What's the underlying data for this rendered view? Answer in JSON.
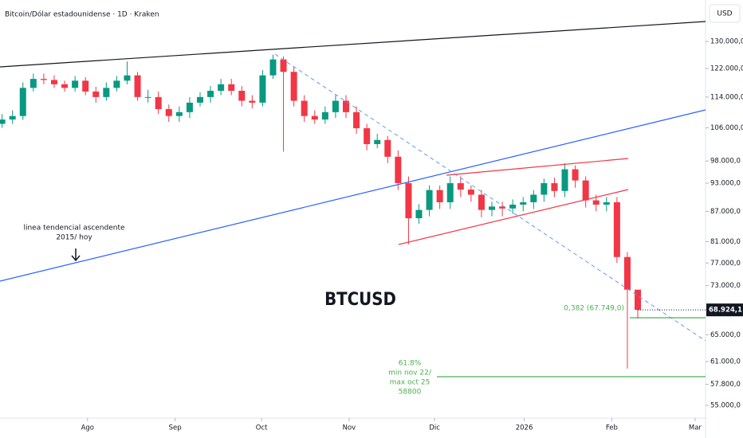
{
  "header": {
    "title": "Bitcoin/Dólar estadounidense · 1D · Kraken",
    "currency": "USD"
  },
  "chart_data": {
    "type": "candlestick",
    "symbol": "BTCUSD",
    "log_scale": true,
    "up_color": "#089981",
    "down_color": "#f23645",
    "categories": [
      null,
      null,
      null,
      null,
      null,
      null,
      null,
      null,
      null,
      null,
      null,
      null,
      null,
      null,
      null,
      null,
      null,
      null,
      null,
      null,
      null,
      null,
      null,
      null,
      null,
      null,
      null,
      null,
      null,
      null,
      null,
      null,
      null,
      null,
      null,
      null,
      null,
      null,
      null,
      null,
      null,
      null,
      null,
      null,
      null,
      null,
      null,
      null,
      null,
      null,
      null,
      null,
      null,
      null,
      null,
      null,
      null,
      null,
      null,
      null,
      null,
      null
    ],
    "open": [
      107000,
      108100,
      109000,
      116500,
      119000,
      118700,
      117500,
      116500,
      118500,
      115500,
      114000,
      116500,
      118500,
      120000,
      114000,
      114000,
      110800,
      109000,
      110000,
      112500,
      114000,
      115700,
      117500,
      115700,
      113000,
      112500,
      120000,
      124600,
      121000,
      113000,
      109000,
      108100,
      110000,
      113000,
      110000,
      105900,
      102000,
      103000,
      99000,
      93000,
      85600,
      87300,
      91500,
      88900,
      93000,
      91600,
      90500,
      87300,
      88000,
      87600,
      88400,
      88900,
      90500,
      93000,
      91300,
      96100,
      93600,
      89300,
      88400,
      88900,
      78100,
      72300
    ],
    "high": [
      109500,
      110500,
      118000,
      120500,
      120500,
      120000,
      118500,
      119800,
      119500,
      116800,
      118000,
      119800,
      124000,
      121000,
      116000,
      115500,
      112000,
      111500,
      114000,
      115300,
      117000,
      119000,
      119000,
      117000,
      114500,
      121500,
      126000,
      125500,
      122500,
      114500,
      110500,
      111500,
      114500,
      114500,
      111500,
      107000,
      104500,
      104000,
      100500,
      94500,
      88500,
      92500,
      92500,
      94500,
      94500,
      92500,
      91500,
      89000,
      89000,
      89500,
      90000,
      91500,
      94000,
      94200,
      97500,
      97000,
      94500,
      90500,
      90000,
      90000,
      79000,
      71500
    ],
    "low": [
      106000,
      107000,
      108000,
      115500,
      117500,
      116500,
      115500,
      115500,
      114500,
      112500,
      113000,
      115500,
      117500,
      113000,
      112500,
      109500,
      107500,
      107500,
      108500,
      111500,
      112500,
      114500,
      114500,
      111500,
      111000,
      111500,
      119000,
      100200,
      111500,
      107500,
      107000,
      107000,
      108500,
      108500,
      104500,
      100500,
      101000,
      97500,
      91500,
      80500,
      84500,
      86000,
      87500,
      87500,
      90000,
      89000,
      85800,
      86000,
      86000,
      86500,
      87000,
      87500,
      89000,
      90000,
      90000,
      92000,
      87800,
      87000,
      87000,
      77000,
      60000,
      67500
    ],
    "close": [
      108100,
      109000,
      116500,
      119000,
      118700,
      117500,
      116500,
      118500,
      115500,
      114000,
      116500,
      118500,
      120000,
      114000,
      114000,
      110800,
      109000,
      110000,
      112500,
      114000,
      115700,
      117500,
      115700,
      113000,
      112500,
      120000,
      124600,
      121000,
      113000,
      109000,
      108100,
      110000,
      113000,
      110000,
      105900,
      102000,
      103000,
      99000,
      93000,
      85600,
      87300,
      91500,
      88900,
      93000,
      91600,
      90500,
      87300,
      88000,
      87600,
      88400,
      88900,
      90500,
      93000,
      91300,
      96100,
      93600,
      89300,
      88400,
      88900,
      78100,
      72300,
      68924.1
    ],
    "xlim": [
      -0.2,
      67.5
    ],
    "xticks": [
      {
        "value": 8.2,
        "label": "Ago"
      },
      {
        "value": 16.6,
        "label": "Sep"
      },
      {
        "value": 24.9,
        "label": "Oct"
      },
      {
        "value": 33.3,
        "label": "Nov"
      },
      {
        "value": 41.5,
        "label": "Dic"
      },
      {
        "value": 50.1,
        "label": "2026"
      },
      {
        "value": 58.5,
        "label": "Feb"
      },
      {
        "value": 66.5,
        "label": "Mar"
      }
    ],
    "ylim": [
      53370,
      143400
    ],
    "yticks": [
      {
        "value": 55000,
        "label": "55.000,0"
      },
      {
        "value": 57800,
        "label": "57.800,0"
      },
      {
        "value": 61000,
        "label": "61.000,0"
      },
      {
        "value": 65000,
        "label": "65.000,0"
      },
      {
        "value": 73000,
        "label": "73.000,0"
      },
      {
        "value": 77000,
        "label": "77.000,0"
      },
      {
        "value": 81000,
        "label": "81.000,0"
      },
      {
        "value": 87000,
        "label": "87.000,0"
      },
      {
        "value": 93000,
        "label": "93.000,0"
      },
      {
        "value": 98000,
        "label": "98.000,0"
      },
      {
        "value": 106000,
        "label": "106.000,0"
      },
      {
        "value": 114000,
        "label": "114.000,0"
      },
      {
        "value": 122000,
        "label": "122.000,0"
      },
      {
        "value": 130000,
        "label": "130.000,0"
      }
    ],
    "last_price": {
      "value": 68924.1,
      "label": "68.924,1"
    },
    "annotations": {
      "trendline": [
        "linea tendencial ascendente",
        "2015/ hoy"
      ],
      "fib_382": "0,382 (67.749,0)",
      "fib_618": [
        "61.8%",
        "min nov 22/",
        "max oct 25",
        "58800"
      ]
    }
  }
}
